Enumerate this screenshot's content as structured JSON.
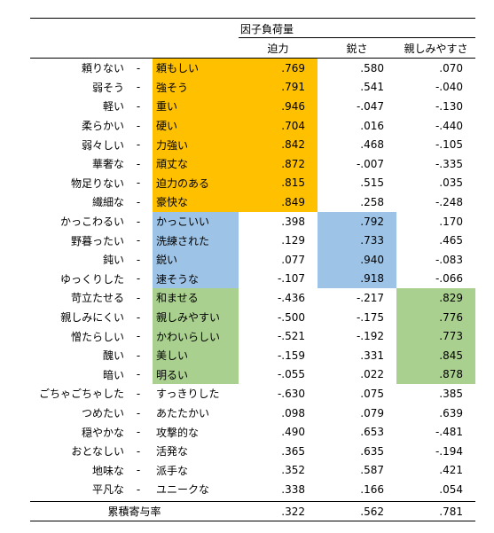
{
  "header": {
    "group_title": "因子負荷量",
    "factors": [
      "迫力",
      "鋭さ",
      "親しみやすさ"
    ]
  },
  "colors": {
    "factor1_highlight": "#FFC000",
    "factor2_highlight": "#9DC3E6",
    "factor3_highlight": "#A9D08E"
  },
  "rows": [
    {
      "neg": "頼りない",
      "pos": "頼もしい",
      "v": [
        ".769",
        ".580",
        ".070"
      ],
      "group": 0
    },
    {
      "neg": "弱そう",
      "pos": "強そう",
      "v": [
        ".791",
        ".541",
        "-.040"
      ],
      "group": 0
    },
    {
      "neg": "軽い",
      "pos": "重い",
      "v": [
        ".946",
        "-.047",
        "-.130"
      ],
      "group": 0
    },
    {
      "neg": "柔らかい",
      "pos": "硬い",
      "v": [
        ".704",
        ".016",
        "-.440"
      ],
      "group": 0
    },
    {
      "neg": "弱々しい",
      "pos": "力強い",
      "v": [
        ".842",
        ".468",
        "-.105"
      ],
      "group": 0
    },
    {
      "neg": "華奢な",
      "pos": "頑丈な",
      "v": [
        ".872",
        "-.007",
        "-.335"
      ],
      "group": 0
    },
    {
      "neg": "物足りない",
      "pos": "迫力のある",
      "v": [
        ".815",
        ".515",
        ".035"
      ],
      "group": 0
    },
    {
      "neg": "繊細な",
      "pos": "豪快な",
      "v": [
        ".849",
        ".258",
        "-.248"
      ],
      "group": 0
    },
    {
      "neg": "かっこわるい",
      "pos": "かっこいい",
      "v": [
        ".398",
        ".792",
        ".170"
      ],
      "group": 1
    },
    {
      "neg": "野暮ったい",
      "pos": "洗練された",
      "v": [
        ".129",
        ".733",
        ".465"
      ],
      "group": 1
    },
    {
      "neg": "鈍い",
      "pos": "鋭い",
      "v": [
        ".077",
        ".940",
        "-.083"
      ],
      "group": 1
    },
    {
      "neg": "ゆっくりした",
      "pos": "速そうな",
      "v": [
        "-.107",
        ".918",
        "-.066"
      ],
      "group": 1
    },
    {
      "neg": "苛立たせる",
      "pos": "和ませる",
      "v": [
        "-.436",
        "-.217",
        ".829"
      ],
      "group": 2
    },
    {
      "neg": "親しみにくい",
      "pos": "親しみやすい",
      "v": [
        "-.500",
        "-.175",
        ".776"
      ],
      "group": 2
    },
    {
      "neg": "憎たらしい",
      "pos": "かわいらしい",
      "v": [
        "-.521",
        "-.192",
        ".773"
      ],
      "group": 2
    },
    {
      "neg": "醜い",
      "pos": "美しい",
      "v": [
        "-.159",
        ".331",
        ".845"
      ],
      "group": 2
    },
    {
      "neg": "暗い",
      "pos": "明るい",
      "v": [
        "-.055",
        ".022",
        ".878"
      ],
      "group": 2
    },
    {
      "neg": "ごちゃごちゃした",
      "pos": "すっきりした",
      "v": [
        "-.630",
        ".075",
        ".385"
      ],
      "group": null
    },
    {
      "neg": "つめたい",
      "pos": "あたたかい",
      "v": [
        ".098",
        ".079",
        ".639"
      ],
      "group": null
    },
    {
      "neg": "穏やかな",
      "pos": "攻撃的な",
      "v": [
        ".490",
        ".653",
        "-.481"
      ],
      "group": null
    },
    {
      "neg": "おとなしい",
      "pos": "活発な",
      "v": [
        ".365",
        ".635",
        "-.194"
      ],
      "group": null
    },
    {
      "neg": "地味な",
      "pos": "派手な",
      "v": [
        ".352",
        ".587",
        ".421"
      ],
      "group": null
    },
    {
      "neg": "平凡な",
      "pos": "ユニークな",
      "v": [
        ".338",
        ".166",
        ".054"
      ],
      "group": null
    }
  ],
  "separator": "-",
  "footer": {
    "label": "累積寄与率",
    "values": [
      ".322",
      ".562",
      ".781"
    ]
  }
}
